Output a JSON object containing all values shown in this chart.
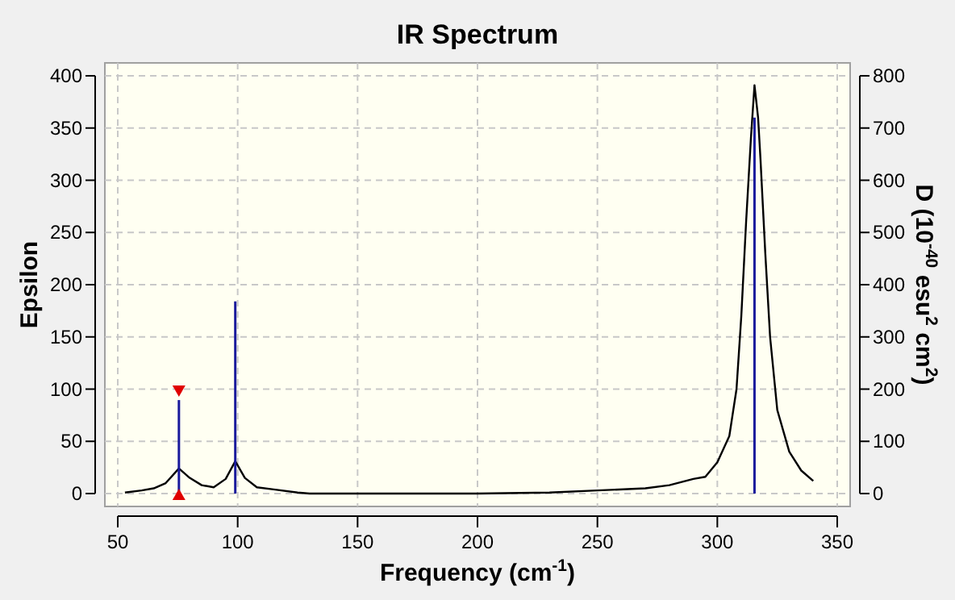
{
  "chart_data": {
    "type": "line",
    "title": "IR Spectrum",
    "xlabel": "Frequency (cm$^{-1}$)",
    "ylabel": "Epsilon",
    "y2label": "D (10$^{-40}$ esu$^{2}$ cm$^{2}$)",
    "xlim": [
      50,
      350
    ],
    "xticks": [
      50,
      100,
      150,
      200,
      250,
      300,
      350
    ],
    "ylim": [
      0,
      400
    ],
    "yticks": [
      0,
      50,
      100,
      150,
      200,
      250,
      300,
      350,
      400
    ],
    "y2lim": [
      0,
      800
    ],
    "y2ticks": [
      0,
      100,
      200,
      300,
      400,
      500,
      600,
      700,
      800
    ],
    "grid": true,
    "line_style": "solid",
    "series": [
      {
        "color": "#000000",
        "x": [
          53,
          60,
          65,
          70,
          75.5,
          80,
          85,
          90,
          95,
          99,
          103,
          108,
          115,
          125,
          130,
          200,
          230,
          250,
          270,
          280,
          290,
          295,
          300,
          305,
          308,
          310,
          312,
          314,
          315.5,
          317,
          318,
          320,
          322,
          325,
          330,
          335,
          340
        ],
        "values": [
          1,
          3,
          5,
          10,
          24,
          15,
          8,
          6,
          14,
          31,
          15,
          6,
          4,
          1,
          0,
          0,
          1,
          3,
          5,
          8,
          14,
          16,
          30,
          55,
          100,
          170,
          260,
          340,
          391,
          360,
          320,
          230,
          150,
          80,
          40,
          22,
          12
        ]
      },
      {
        "type": "bar",
        "axis": "y2",
        "color": "#1a1a9c",
        "x": [
          75.5,
          99,
          315.5
        ],
        "values": [
          179,
          368,
          720
        ]
      }
    ]
  }
}
